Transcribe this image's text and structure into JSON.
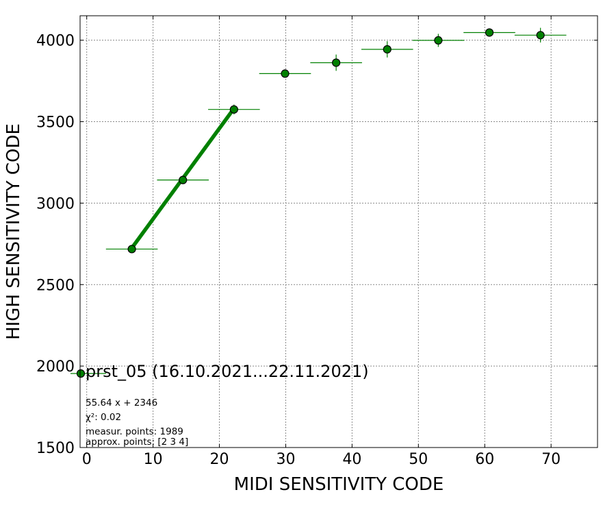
{
  "chart_data": {
    "type": "scatter",
    "xlabel": "MIDI SENSITIVITY CODE",
    "ylabel": "HIGH SENSITIVITY CODE",
    "xlim": [
      -1,
      77
    ],
    "ylim": [
      1500,
      4150
    ],
    "xticks": [
      0,
      10,
      20,
      30,
      40,
      50,
      60,
      70
    ],
    "yticks": [
      1500,
      2000,
      2500,
      3000,
      3500,
      4000
    ],
    "grid": true,
    "marker_color": "#008000",
    "fit_line_color": "#008000",
    "legend": {
      "label": "prst_05 (16.10.2021...22.11.2021)",
      "placement": "center-left"
    },
    "series": [
      {
        "points": [
          {
            "x": 6.8,
            "y": 2718,
            "xerr": 3.9,
            "yerr": 10
          },
          {
            "x": 14.5,
            "y": 3142,
            "xerr": 3.9,
            "yerr": 20
          },
          {
            "x": 22.2,
            "y": 3575,
            "xerr": 3.9,
            "yerr": 30
          },
          {
            "x": 29.9,
            "y": 3795,
            "xerr": 3.9,
            "yerr": 25
          },
          {
            "x": 37.6,
            "y": 3862,
            "xerr": 3.9,
            "yerr": 50
          },
          {
            "x": 45.3,
            "y": 3944,
            "xerr": 3.9,
            "yerr": 50
          },
          {
            "x": 53.0,
            "y": 3999,
            "xerr": 3.9,
            "yerr": 40
          },
          {
            "x": 60.7,
            "y": 4047,
            "xerr": 3.9,
            "yerr": 25
          },
          {
            "x": 68.4,
            "y": 4031,
            "xerr": 3.9,
            "yerr": 45
          }
        ]
      }
    ],
    "fit_line": {
      "x": [
        6.8,
        22.2
      ],
      "slope": 55.64,
      "intercept": 2346
    },
    "annotations": [
      "55.64 x + 2346",
      "χ²: 0.02",
      "measur. points: 1989",
      "approx. points: [2 3 4]"
    ]
  }
}
